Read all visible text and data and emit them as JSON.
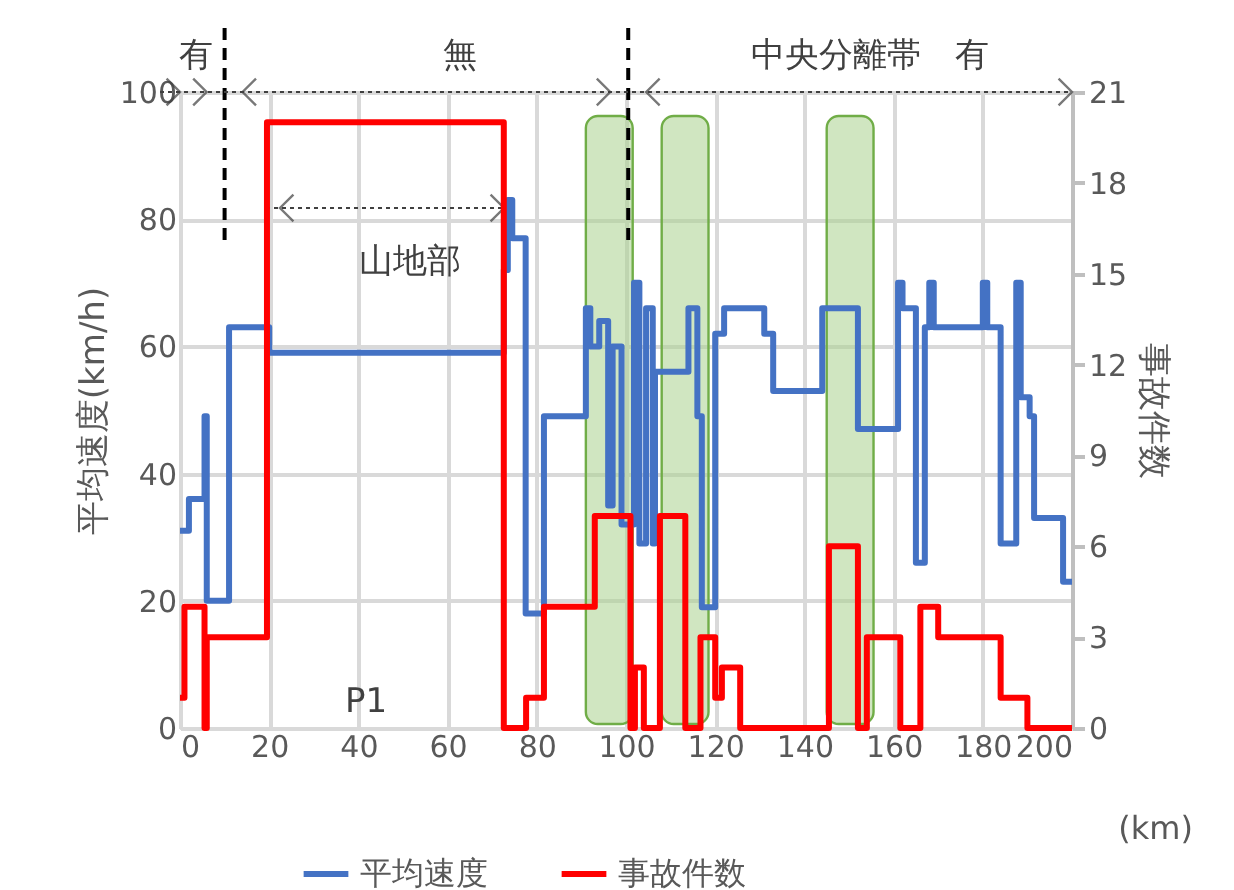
{
  "chart_data": {
    "type": "step",
    "xlabel": "(km)",
    "ylabel": "平均速度(km/h)",
    "y2label": "事故件数",
    "xlim": [
      0,
      200
    ],
    "xticks": [
      0,
      20,
      40,
      60,
      80,
      100,
      120,
      140,
      160,
      180,
      200
    ],
    "ylim": [
      0,
      100
    ],
    "yticks": [
      0,
      20,
      40,
      60,
      80,
      100
    ],
    "y2lim": [
      0,
      21
    ],
    "y2ticks": [
      0,
      3,
      6,
      9,
      12,
      15,
      18,
      21
    ],
    "grid": true,
    "legend": "bottom",
    "line_style": "solid",
    "marker": "none",
    "series": [
      {
        "name": "平均速度",
        "color": "#4472c4",
        "x": [
          0,
          2,
          5.5,
          6,
          11,
          20,
          72.6,
          73.5,
          74.5,
          77.5,
          81.6,
          91,
          92,
          94,
          96,
          97,
          99,
          101.8,
          103,
          104.5,
          106,
          106.5,
          114,
          116,
          117,
          120,
          122,
          131,
          133,
          144,
          152,
          161,
          162,
          165,
          167,
          168,
          169,
          180,
          181,
          184,
          187.5,
          188.5,
          190.5,
          191.5,
          198,
          200
        ],
        "values": [
          31,
          36,
          49,
          20,
          63,
          59,
          72,
          83,
          77,
          18,
          49,
          66,
          60,
          64,
          35,
          60,
          32,
          70,
          29,
          66,
          29,
          56,
          66,
          49,
          19,
          62,
          66,
          62,
          53,
          66,
          47,
          70,
          66,
          26,
          63,
          70,
          63,
          70,
          63,
          29,
          70,
          52,
          49,
          33,
          23,
          23
        ]
      },
      {
        "name": "事故件数",
        "color": "#ff0000",
        "axis": "y2",
        "x": [
          0,
          1,
          5.5,
          6,
          19.5,
          72.6,
          77.6,
          81.6,
          93,
          101,
          102,
          104,
          107.6,
          113.3,
          116.7,
          120,
          121.5,
          125.6,
          145.5,
          152,
          154,
          161.5,
          166,
          170,
          184,
          190,
          200
        ],
        "values": [
          1,
          4,
          0,
          3,
          20,
          0,
          1,
          4,
          7,
          0,
          2,
          0,
          7,
          0,
          3,
          1,
          2,
          0,
          6,
          0,
          3,
          0,
          4,
          3,
          1,
          0,
          0
        ]
      }
    ],
    "bands": [
      {
        "axis": "x",
        "from": 91,
        "to": 101.5,
        "color": "#a9d18e"
      },
      {
        "axis": "x",
        "from": 108,
        "to": 118.5,
        "color": "#a9d18e"
      },
      {
        "axis": "x",
        "from": 145,
        "to": 155.5,
        "color": "#a9d18e"
      }
    ],
    "ref_lines": [
      {
        "axis": "x",
        "value": 10,
        "line_style": "dashed",
        "color": "#000000"
      },
      {
        "axis": "x",
        "value": 100.5,
        "line_style": "dashed",
        "color": "#000000"
      }
    ],
    "annotations": [
      "有",
      "無",
      "中央分離帯　有",
      "山地部",
      "P1"
    ]
  }
}
